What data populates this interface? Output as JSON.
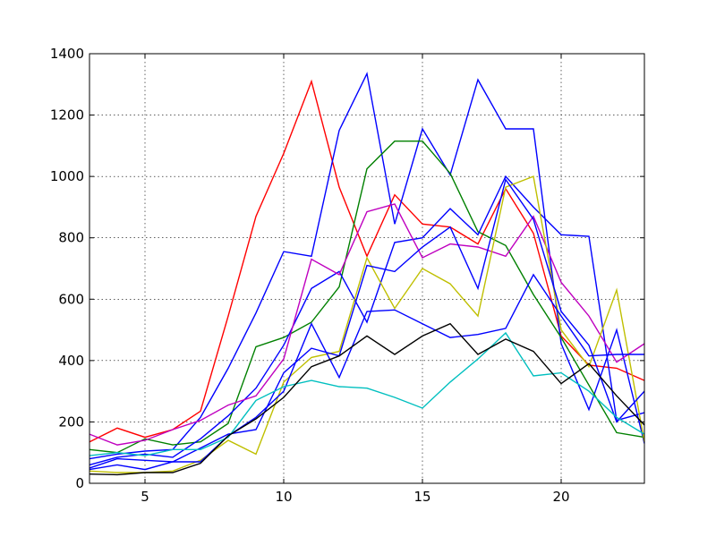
{
  "chart_data": {
    "type": "line",
    "title": "",
    "xlabel": "",
    "ylabel": "",
    "xlim": [
      3,
      23
    ],
    "ylim": [
      0,
      1400
    ],
    "xticks": [
      5,
      10,
      15,
      20
    ],
    "yticks": [
      0,
      200,
      400,
      600,
      800,
      1000,
      1200,
      1400
    ],
    "x": [
      3,
      4,
      5,
      6,
      7,
      8,
      9,
      10,
      11,
      12,
      13,
      14,
      15,
      16,
      17,
      18,
      19,
      20,
      21,
      22,
      23
    ],
    "grid": true,
    "series": [
      {
        "color": "#ff0000",
        "values": [
          135,
          180,
          150,
          175,
          235,
          545,
          870,
          1075,
          1310,
          965,
          740,
          940,
          845,
          835,
          780,
          960,
          815,
          480,
          385,
          375,
          335
        ]
      },
      {
        "color": "#0000ff",
        "values": [
          80,
          95,
          105,
          110,
          215,
          375,
          555,
          755,
          740,
          1150,
          1335,
          845,
          1155,
          1005,
          1315,
          1155,
          1155,
          455,
          240,
          500,
          130
        ]
      },
      {
        "color": "#008000",
        "values": [
          110,
          100,
          145,
          125,
          135,
          195,
          445,
          475,
          525,
          640,
          1025,
          1115,
          1115,
          1010,
          820,
          775,
          615,
          475,
          320,
          165,
          150
        ]
      },
      {
        "color": "#0000ff",
        "values": [
          60,
          85,
          95,
          85,
          145,
          220,
          310,
          450,
          635,
          690,
          525,
          785,
          800,
          895,
          810,
          1000,
          900,
          810,
          805,
          205,
          230
        ]
      },
      {
        "color": "#bf00bf",
        "values": [
          160,
          125,
          140,
          175,
          205,
          255,
          285,
          405,
          730,
          680,
          885,
          910,
          735,
          780,
          770,
          740,
          870,
          655,
          545,
          395,
          455
        ]
      },
      {
        "color": "#bfbf00",
        "values": [
          40,
          35,
          35,
          40,
          75,
          140,
          95,
          330,
          410,
          430,
          735,
          570,
          700,
          650,
          545,
          965,
          1000,
          500,
          380,
          630,
          135
        ]
      },
      {
        "color": "#0000ff",
        "values": [
          50,
          80,
          75,
          70,
          115,
          160,
          175,
          360,
          440,
          415,
          710,
          690,
          770,
          835,
          635,
          990,
          860,
          560,
          450,
          200,
          300
        ]
      },
      {
        "color": "#0000ff",
        "values": [
          45,
          60,
          45,
          70,
          70,
          155,
          215,
          300,
          520,
          345,
          560,
          565,
          520,
          475,
          485,
          505,
          680,
          545,
          415,
          420,
          420
        ]
      },
      {
        "color": "#00bfbf",
        "values": [
          90,
          100,
          90,
          110,
          110,
          150,
          270,
          315,
          335,
          315,
          310,
          280,
          245,
          330,
          405,
          490,
          350,
          360,
          300,
          215,
          160
        ]
      },
      {
        "color": "#000000",
        "values": [
          30,
          28,
          35,
          35,
          65,
          155,
          210,
          280,
          380,
          415,
          480,
          420,
          480,
          520,
          420,
          470,
          430,
          325,
          390,
          285,
          190
        ]
      }
    ]
  }
}
